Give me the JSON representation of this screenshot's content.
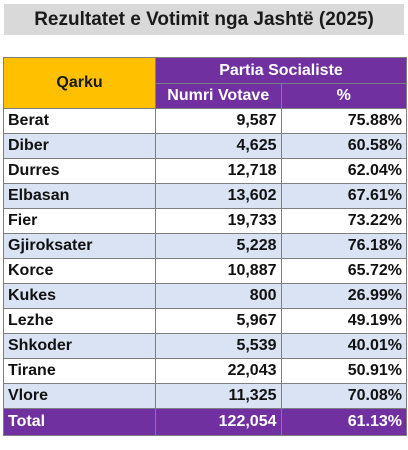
{
  "title": "Rezultatet e Votimit nga Jashtë (2025)",
  "header": {
    "qarku": "Qarku",
    "party": "Partia Socialiste",
    "votes": "Numri Votave",
    "percent": "%"
  },
  "colors": {
    "header_accent": "#ffc000",
    "purple": "#7030a0",
    "stripe": "#dae3f3"
  },
  "rows": [
    {
      "name": "Berat",
      "votes": "9,587",
      "pct": "75.88%"
    },
    {
      "name": "Diber",
      "votes": "4,625",
      "pct": "60.58%"
    },
    {
      "name": "Durres",
      "votes": "12,718",
      "pct": "62.04%"
    },
    {
      "name": "Elbasan",
      "votes": "13,602",
      "pct": "67.61%"
    },
    {
      "name": "Fier",
      "votes": "19,733",
      "pct": "73.22%"
    },
    {
      "name": "Gjiroksater",
      "votes": "5,228",
      "pct": "76.18%"
    },
    {
      "name": "Korce",
      "votes": "10,887",
      "pct": "65.72%"
    },
    {
      "name": "Kukes",
      "votes": "800",
      "pct": "26.99%"
    },
    {
      "name": "Lezhe",
      "votes": "5,967",
      "pct": "49.19%"
    },
    {
      "name": "Shkoder",
      "votes": "5,539",
      "pct": "40.01%"
    },
    {
      "name": "Tirane",
      "votes": "22,043",
      "pct": "50.91%"
    },
    {
      "name": "Vlore",
      "votes": "11,325",
      "pct": "70.08%"
    }
  ],
  "total": {
    "name": "Total",
    "votes": "122,054",
    "pct": "61.13%"
  }
}
